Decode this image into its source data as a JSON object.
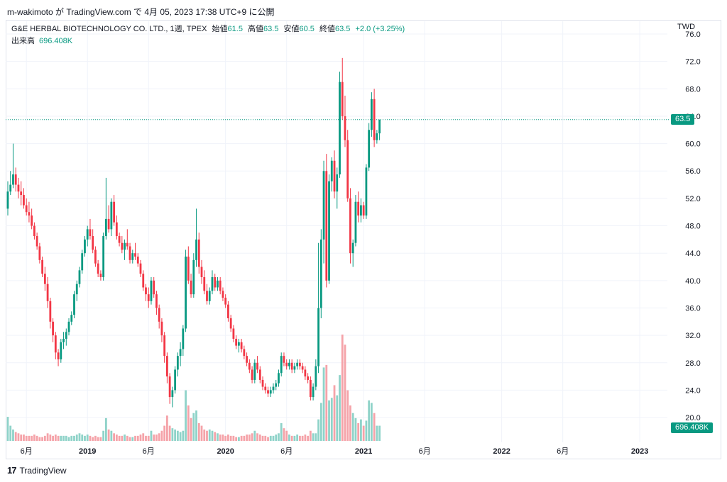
{
  "caption": "m-wakimoto が TradingView.com で 4月 05, 2023 17:38 UTC+9 に公開",
  "legend": {
    "symbol": "G&E HERBAL BIOTECHNOLOGY CO. LTD., 1週, TPEX",
    "open_label": "始値",
    "open": "61.5",
    "high_label": "高値",
    "high": "63.5",
    "low_label": "安値",
    "low": "60.5",
    "close_label": "終値",
    "close": "63.5",
    "change": "+2.0 (+3.25%)",
    "volume_label": "出来高",
    "volume": "696.408K"
  },
  "currency": "TWD",
  "last_price_tag": "63.5",
  "volume_tag": "696.408K",
  "footer": {
    "logo": "17",
    "brand": "TradingView"
  },
  "colors": {
    "up": "#089981",
    "down": "#f23645",
    "up_vol": "#8fd3c9",
    "down_vol": "#f5a3a9",
    "grid": "#f0f3fa",
    "axis_text": "#131722"
  },
  "chart_data": {
    "type": "candlestick",
    "title": "G&E HERBAL BIOTECHNOLOGY CO. LTD., 1週, TPEX",
    "ylim": [
      16.8,
      76.0
    ],
    "y_ticks": [
      "20.0",
      "24.0",
      "28.0",
      "32.0",
      "36.0",
      "40.0",
      "44.0",
      "48.0",
      "52.0",
      "56.0",
      "60.0",
      "64.0",
      "68.0",
      "72.0",
      "76.0"
    ],
    "x_ticks": [
      "6月",
      "2019",
      "6月",
      "2020",
      "6月",
      "2021",
      "6月",
      "2022",
      "6月",
      "2023"
    ],
    "x_tick_weeks": [
      7,
      30,
      53,
      82,
      105,
      134,
      157,
      186,
      209,
      238
    ],
    "candles": [
      [
        50.5,
        54.5,
        49.5,
        53.0
      ],
      [
        53.0,
        56.0,
        52.5,
        54.0
      ],
      [
        54.0,
        60.0,
        53.5,
        55.5
      ],
      [
        55.5,
        56.5,
        53.0,
        54.0
      ],
      [
        54.0,
        55.0,
        52.0,
        53.0
      ],
      [
        53.0,
        54.5,
        51.0,
        52.5
      ],
      [
        52.5,
        53.5,
        50.5,
        51.0
      ],
      [
        51.0,
        52.0,
        49.5,
        50.0
      ],
      [
        50.0,
        51.5,
        48.5,
        49.5
      ],
      [
        49.5,
        50.5,
        47.5,
        48.0
      ],
      [
        48.0,
        48.5,
        46.0,
        46.5
      ],
      [
        46.5,
        47.0,
        44.5,
        45.0
      ],
      [
        45.0,
        45.5,
        42.5,
        43.0
      ],
      [
        43.0,
        43.5,
        40.5,
        41.0
      ],
      [
        41.0,
        42.0,
        38.5,
        39.5
      ],
      [
        39.5,
        40.5,
        36.0,
        37.0
      ],
      [
        37.0,
        37.5,
        33.0,
        34.0
      ],
      [
        34.0,
        34.5,
        31.0,
        32.0
      ],
      [
        32.0,
        32.5,
        28.5,
        29.5
      ],
      [
        29.5,
        30.0,
        27.5,
        28.5
      ],
      [
        28.5,
        31.5,
        28.0,
        31.0
      ],
      [
        31.0,
        32.5,
        30.0,
        31.5
      ],
      [
        31.5,
        33.0,
        30.5,
        32.5
      ],
      [
        32.5,
        34.5,
        32.0,
        34.0
      ],
      [
        34.0,
        35.5,
        33.5,
        35.0
      ],
      [
        35.0,
        38.5,
        34.5,
        38.0
      ],
      [
        38.0,
        40.0,
        37.0,
        39.5
      ],
      [
        39.5,
        42.0,
        39.0,
        41.5
      ],
      [
        41.5,
        44.5,
        41.0,
        44.0
      ],
      [
        44.0,
        46.5,
        43.5,
        46.0
      ],
      [
        46.0,
        48.0,
        45.0,
        47.5
      ],
      [
        47.5,
        49.0,
        46.0,
        46.5
      ],
      [
        46.5,
        47.5,
        44.0,
        44.5
      ],
      [
        44.5,
        45.0,
        42.0,
        42.5
      ],
      [
        42.5,
        43.0,
        40.5,
        41.0
      ],
      [
        41.0,
        41.5,
        40.0,
        40.5
      ],
      [
        40.5,
        47.0,
        40.0,
        46.5
      ],
      [
        46.5,
        55.0,
        46.0,
        49.0
      ],
      [
        49.0,
        51.0,
        47.0,
        47.5
      ],
      [
        47.5,
        52.0,
        46.5,
        51.5
      ],
      [
        51.5,
        52.5,
        48.0,
        48.5
      ],
      [
        48.5,
        49.5,
        46.0,
        46.5
      ],
      [
        46.5,
        47.0,
        45.0,
        45.5
      ],
      [
        45.5,
        46.5,
        44.0,
        44.5
      ],
      [
        44.5,
        46.0,
        43.0,
        45.5
      ],
      [
        45.5,
        47.5,
        44.5,
        45.0
      ],
      [
        45.0,
        45.5,
        42.5,
        43.0
      ],
      [
        43.0,
        44.5,
        42.5,
        44.0
      ],
      [
        44.0,
        45.5,
        43.0,
        43.5
      ],
      [
        43.5,
        44.0,
        42.0,
        42.5
      ],
      [
        42.5,
        43.0,
        40.5,
        41.0
      ],
      [
        41.0,
        41.5,
        38.5,
        39.0
      ],
      [
        39.0,
        39.5,
        37.0,
        38.0
      ],
      [
        38.0,
        39.0,
        36.0,
        37.0
      ],
      [
        37.0,
        40.5,
        36.5,
        40.0
      ],
      [
        40.0,
        40.5,
        37.5,
        38.0
      ],
      [
        38.0,
        38.5,
        35.0,
        36.0
      ],
      [
        36.0,
        36.5,
        33.0,
        34.0
      ],
      [
        34.0,
        34.5,
        31.0,
        32.0
      ],
      [
        32.0,
        32.5,
        28.0,
        29.0
      ],
      [
        29.0,
        29.5,
        25.0,
        26.0
      ],
      [
        26.0,
        26.5,
        22.0,
        23.0
      ],
      [
        23.0,
        24.5,
        21.5,
        24.0
      ],
      [
        24.0,
        27.5,
        23.5,
        27.0
      ],
      [
        27.0,
        29.5,
        26.0,
        29.0
      ],
      [
        29.0,
        31.0,
        27.5,
        30.0
      ],
      [
        30.0,
        33.5,
        29.0,
        33.0
      ],
      [
        33.0,
        44.5,
        32.5,
        43.5
      ],
      [
        43.5,
        45.0,
        39.5,
        40.0
      ],
      [
        40.0,
        41.0,
        37.5,
        38.0
      ],
      [
        38.0,
        44.0,
        37.5,
        43.0
      ],
      [
        43.0,
        50.5,
        42.0,
        46.0
      ],
      [
        46.0,
        47.0,
        41.0,
        42.0
      ],
      [
        42.0,
        43.0,
        39.5,
        40.5
      ],
      [
        40.5,
        41.5,
        38.0,
        38.5
      ],
      [
        38.5,
        39.5,
        36.5,
        37.0
      ],
      [
        37.0,
        39.0,
        36.5,
        38.5
      ],
      [
        38.5,
        41.5,
        38.0,
        40.5
      ],
      [
        40.5,
        41.0,
        38.5,
        39.0
      ],
      [
        39.0,
        40.5,
        38.5,
        40.0
      ],
      [
        40.0,
        40.5,
        38.0,
        38.5
      ],
      [
        38.5,
        39.0,
        37.0,
        37.5
      ],
      [
        37.5,
        38.0,
        36.0,
        36.5
      ],
      [
        36.5,
        37.0,
        34.0,
        34.5
      ],
      [
        34.5,
        35.0,
        32.5,
        33.0
      ],
      [
        33.0,
        33.5,
        31.0,
        31.5
      ],
      [
        31.5,
        32.0,
        30.0,
        30.5
      ],
      [
        30.5,
        31.5,
        29.5,
        31.0
      ],
      [
        31.0,
        31.5,
        29.5,
        30.0
      ],
      [
        30.0,
        30.5,
        28.5,
        29.0
      ],
      [
        29.0,
        29.5,
        27.5,
        28.0
      ],
      [
        28.0,
        28.5,
        26.5,
        27.0
      ],
      [
        27.0,
        27.5,
        25.0,
        25.5
      ],
      [
        25.5,
        28.5,
        25.0,
        28.0
      ],
      [
        28.0,
        29.0,
        26.5,
        27.0
      ],
      [
        27.0,
        27.5,
        25.0,
        25.5
      ],
      [
        25.5,
        26.0,
        24.0,
        24.5
      ],
      [
        24.5,
        25.0,
        23.5,
        24.0
      ],
      [
        24.0,
        24.5,
        23.0,
        23.5
      ],
      [
        23.5,
        24.5,
        23.0,
        24.0
      ],
      [
        24.0,
        25.0,
        23.5,
        24.5
      ],
      [
        24.5,
        25.5,
        24.0,
        25.0
      ],
      [
        25.0,
        27.0,
        24.5,
        26.5
      ],
      [
        26.5,
        29.5,
        26.0,
        29.0
      ],
      [
        29.0,
        29.5,
        27.5,
        28.0
      ],
      [
        28.0,
        28.5,
        27.0,
        27.5
      ],
      [
        27.5,
        28.5,
        27.0,
        28.0
      ],
      [
        28.0,
        28.5,
        26.5,
        27.0
      ],
      [
        27.0,
        28.0,
        26.5,
        27.5
      ],
      [
        27.5,
        28.5,
        27.0,
        28.0
      ],
      [
        28.0,
        28.5,
        27.0,
        27.5
      ],
      [
        27.5,
        28.0,
        26.5,
        27.0
      ],
      [
        27.0,
        27.5,
        25.5,
        26.0
      ],
      [
        26.0,
        26.5,
        25.0,
        25.5
      ],
      [
        25.5,
        26.0,
        22.5,
        23.0
      ],
      [
        23.0,
        25.0,
        22.5,
        24.5
      ],
      [
        24.5,
        28.5,
        24.0,
        27.5
      ],
      [
        27.5,
        45.5,
        26.5,
        36.0
      ],
      [
        36.0,
        47.5,
        34.5,
        46.0
      ],
      [
        46.0,
        57.5,
        42.5,
        56.0
      ],
      [
        56.0,
        58.5,
        39.0,
        40.0
      ],
      [
        40.0,
        55.5,
        39.5,
        54.5
      ],
      [
        54.5,
        58.0,
        53.0,
        57.5
      ],
      [
        57.5,
        59.0,
        52.0,
        53.0
      ],
      [
        53.0,
        56.5,
        50.5,
        55.5
      ],
      [
        55.5,
        70.5,
        55.0,
        69.0
      ],
      [
        69.0,
        72.5,
        63.5,
        64.0
      ],
      [
        64.0,
        67.0,
        59.5,
        60.5
      ],
      [
        60.5,
        62.0,
        51.5,
        52.0
      ],
      [
        52.0,
        53.5,
        42.5,
        44.0
      ],
      [
        44.0,
        46.0,
        42.0,
        45.5
      ],
      [
        45.5,
        52.5,
        45.0,
        51.5
      ],
      [
        51.5,
        53.0,
        48.5,
        49.5
      ],
      [
        49.5,
        52.0,
        48.5,
        51.0
      ],
      [
        51.0,
        51.5,
        49.0,
        49.5
      ],
      [
        49.5,
        57.0,
        49.0,
        56.5
      ],
      [
        56.5,
        63.0,
        56.0,
        62.0
      ],
      [
        62.0,
        67.5,
        61.0,
        66.5
      ],
      [
        66.5,
        68.0,
        59.5,
        60.5
      ],
      [
        60.5,
        62.0,
        60.0,
        61.5
      ],
      [
        61.5,
        63.5,
        60.5,
        63.5
      ]
    ],
    "volumes": [
      95,
      60,
      45,
      35,
      30,
      25,
      25,
      20,
      20,
      20,
      25,
      20,
      15,
      15,
      20,
      30,
      25,
      20,
      25,
      20,
      20,
      20,
      20,
      15,
      20,
      20,
      25,
      30,
      25,
      20,
      25,
      20,
      15,
      20,
      15,
      15,
      40,
      90,
      45,
      40,
      30,
      25,
      20,
      20,
      25,
      20,
      15,
      15,
      20,
      20,
      25,
      30,
      20,
      20,
      40,
      25,
      25,
      30,
      40,
      60,
      100,
      60,
      50,
      45,
      40,
      35,
      40,
      200,
      140,
      90,
      110,
      120,
      70,
      60,
      45,
      40,
      45,
      40,
      35,
      30,
      25,
      25,
      20,
      25,
      20,
      20,
      15,
      15,
      20,
      20,
      25,
      25,
      30,
      40,
      30,
      25,
      20,
      20,
      15,
      20,
      20,
      25,
      30,
      70,
      50,
      40,
      25,
      20,
      20,
      25,
      20,
      20,
      25,
      20,
      40,
      30,
      30,
      85,
      150,
      290,
      300,
      160,
      170,
      220,
      180,
      260,
      420,
      380,
      200,
      140,
      110,
      90,
      70,
      85,
      60,
      80,
      160,
      150,
      110,
      60,
      60
    ]
  }
}
